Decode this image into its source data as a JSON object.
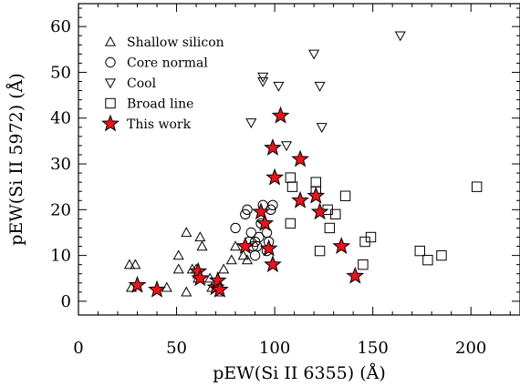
{
  "chart_data": {
    "type": "scatter",
    "xlabel": "pEW(Si II 6355) (Å)",
    "ylabel": "pEW(Si II 5972) (Å)",
    "xlim": [
      0,
      225
    ],
    "ylim": [
      -3,
      65
    ],
    "xticks": [
      "0",
      "50",
      "100",
      "150",
      "200"
    ],
    "yticks": [
      "0",
      "10",
      "20",
      "30",
      "40",
      "50",
      "60"
    ],
    "xtick_values": [
      0,
      50,
      100,
      150,
      200
    ],
    "ytick_values": [
      0,
      10,
      20,
      30,
      40,
      50,
      60
    ],
    "grid": false,
    "legend_placement": "top-left",
    "series": [
      {
        "name": "Shallow silicon",
        "marker": "triangle-up",
        "color": "#000000",
        "points": [
          [
            26,
            8
          ],
          [
            27,
            3
          ],
          [
            29,
            8
          ],
          [
            45,
            3
          ],
          [
            51,
            10
          ],
          [
            51,
            7
          ],
          [
            55,
            2
          ],
          [
            55,
            15
          ],
          [
            60,
            7
          ],
          [
            61,
            5
          ],
          [
            62,
            14
          ],
          [
            63,
            12
          ],
          [
            67,
            5
          ],
          [
            72,
            2
          ],
          [
            74,
            7
          ],
          [
            78,
            9
          ],
          [
            80,
            12
          ],
          [
            84,
            10
          ],
          [
            86,
            9
          ],
          [
            68,
            3
          ],
          [
            58,
            7
          ]
        ]
      },
      {
        "name": "Core normal",
        "marker": "circle",
        "color": "#000000",
        "points": [
          [
            80,
            16
          ],
          [
            85,
            19
          ],
          [
            86,
            20
          ],
          [
            87,
            13
          ],
          [
            88,
            15
          ],
          [
            89,
            12
          ],
          [
            90,
            10
          ],
          [
            90,
            13
          ],
          [
            92,
            14
          ],
          [
            94,
            21
          ],
          [
            96,
            15
          ],
          [
            97,
            13
          ],
          [
            98,
            20
          ],
          [
            99,
            21
          ],
          [
            96,
            11
          ],
          [
            93,
            17
          ],
          [
            91,
            12
          ]
        ]
      },
      {
        "name": "Cool",
        "marker": "triangle-down",
        "color": "#000000",
        "points": [
          [
            94,
            49
          ],
          [
            94,
            48
          ],
          [
            102,
            47
          ],
          [
            120,
            54
          ],
          [
            123,
            47
          ],
          [
            124,
            38
          ],
          [
            164,
            58
          ],
          [
            106,
            34
          ],
          [
            88,
            39
          ]
        ]
      },
      {
        "name": "Broad line",
        "marker": "square",
        "color": "#000000",
        "points": [
          [
            108,
            27
          ],
          [
            109,
            25
          ],
          [
            108,
            17
          ],
          [
            121,
            26
          ],
          [
            121,
            24
          ],
          [
            127,
            20
          ],
          [
            128,
            16
          ],
          [
            131,
            19
          ],
          [
            136,
            23
          ],
          [
            123,
            11
          ],
          [
            145,
            8
          ],
          [
            146,
            13
          ],
          [
            149,
            14
          ],
          [
            174,
            11
          ],
          [
            178,
            9
          ],
          [
            185,
            10
          ],
          [
            203,
            25
          ]
        ]
      },
      {
        "name": "This work",
        "marker": "star",
        "color": "#e8141c",
        "legend_text_color": "#ff0000",
        "points": [
          [
            30,
            3.5
          ],
          [
            40,
            2.5
          ],
          [
            61,
            6.5
          ],
          [
            62,
            5
          ],
          [
            70,
            3
          ],
          [
            71,
            4.5
          ],
          [
            72,
            2.5
          ],
          [
            85,
            12
          ],
          [
            93,
            19.5
          ],
          [
            95,
            17
          ],
          [
            97,
            11.5
          ],
          [
            99,
            8
          ],
          [
            99,
            33.5
          ],
          [
            100,
            27
          ],
          [
            103,
            40.5
          ],
          [
            113,
            22
          ],
          [
            113,
            31
          ],
          [
            121,
            23
          ],
          [
            123,
            19.5
          ],
          [
            134,
            12
          ],
          [
            141,
            5.5
          ]
        ]
      }
    ]
  }
}
